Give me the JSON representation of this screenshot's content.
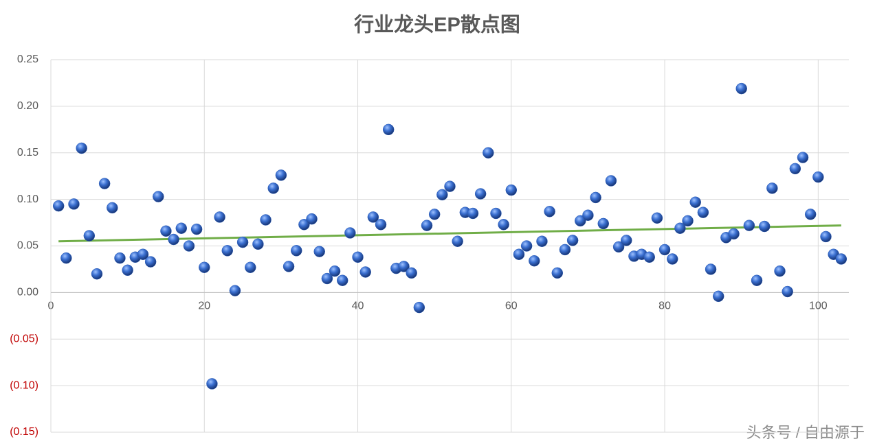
{
  "chart_data": {
    "type": "scatter",
    "title": "行业龙头EP散点图",
    "series": [
      {
        "color": "#2e5fb8",
        "x": [
          1,
          2,
          3,
          4,
          5,
          6,
          7,
          8,
          9,
          10,
          11,
          12,
          13,
          14,
          15,
          16,
          17,
          18,
          19,
          20,
          21,
          22,
          23,
          24,
          25,
          26,
          27,
          28,
          29,
          30,
          31,
          32,
          33,
          34,
          35,
          36,
          37,
          38,
          39,
          40,
          41,
          42,
          43,
          44,
          45,
          46,
          47,
          48,
          49,
          50,
          51,
          52,
          53,
          54,
          55,
          56,
          57,
          58,
          59,
          60,
          61,
          62,
          63,
          64,
          65,
          66,
          67,
          68,
          69,
          70,
          71,
          72,
          73,
          74,
          75,
          76,
          77,
          78,
          79,
          80,
          81,
          82,
          83,
          84,
          85,
          86,
          87,
          88,
          89,
          90,
          91,
          92,
          93,
          94,
          95,
          96,
          97,
          98,
          99,
          100,
          101,
          102,
          103
        ],
        "values": [
          0.093,
          0.037,
          0.095,
          0.155,
          0.061,
          0.02,
          0.117,
          0.091,
          0.037,
          0.024,
          0.038,
          0.041,
          0.033,
          0.103,
          0.066,
          0.057,
          0.069,
          0.05,
          0.068,
          0.027,
          -0.098,
          0.081,
          0.045,
          0.002,
          0.054,
          0.027,
          0.052,
          0.078,
          0.112,
          0.126,
          0.028,
          0.045,
          0.073,
          0.079,
          0.044,
          0.015,
          0.023,
          0.013,
          0.064,
          0.038,
          0.022,
          0.081,
          0.073,
          0.175,
          0.026,
          0.028,
          0.021,
          -0.016,
          0.072,
          0.084,
          0.105,
          0.114,
          0.055,
          0.086,
          0.085,
          0.106,
          0.15,
          0.085,
          0.073,
          0.11,
          0.041,
          0.05,
          0.034,
          0.055,
          0.087,
          0.021,
          0.046,
          0.056,
          0.077,
          0.083,
          0.102,
          0.074,
          0.12,
          0.049,
          0.056,
          0.039,
          0.041,
          0.038,
          0.08,
          0.046,
          0.036,
          0.069,
          0.077,
          0.097,
          0.086,
          0.025,
          -0.004,
          0.059,
          0.063,
          0.219,
          0.072,
          0.013,
          0.071,
          0.112,
          0.023,
          0.001,
          0.133,
          0.145,
          0.084,
          0.124,
          0.06,
          0.041,
          0.036
        ]
      }
    ],
    "trendline": {
      "color": "#70ad47",
      "x": [
        1,
        103
      ],
      "values": [
        0.055,
        0.072
      ]
    },
    "xlim": [
      0,
      104
    ],
    "xticks": [
      0,
      20,
      40,
      60,
      80,
      100
    ],
    "ylim": [
      -0.15,
      0.25
    ],
    "yticks": [
      {
        "value": -0.15,
        "label": "(0.15)"
      },
      {
        "value": -0.1,
        "label": "(0.10)"
      },
      {
        "value": -0.05,
        "label": "(0.05)"
      },
      {
        "value": 0,
        "label": "0.00"
      },
      {
        "value": 0.05,
        "label": "0.05"
      },
      {
        "value": 0.1,
        "label": "0.10"
      },
      {
        "value": 0.15,
        "label": "0.15"
      },
      {
        "value": 0.2,
        "label": "0.20"
      },
      {
        "value": 0.25,
        "label": "0.25"
      }
    ],
    "negative_label_color": "#c00000",
    "grid": true,
    "watermark": "头条号 / 自由源于"
  }
}
